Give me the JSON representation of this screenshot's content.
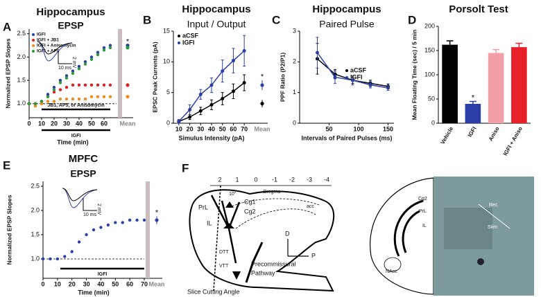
{
  "chart_data": [
    {
      "type": "scatter",
      "panel": "A",
      "title": "Hippocampus",
      "subtitle": "EPSP",
      "x_label": "Time (min)",
      "y_label": "Normalized EPSP Slopes",
      "xlim": [
        0,
        70
      ],
      "xticks": [
        0,
        10,
        20,
        30,
        40,
        50,
        60
      ],
      "ylim": [
        0.7,
        2.6
      ],
      "yticks": [
        {
          "value": 1,
          "label": "1.0"
        },
        1.5,
        {
          "value": 2,
          "label": "2.0"
        },
        2.5
      ],
      "mean_label": "Mean",
      "annotation": "*",
      "legend": "upper left",
      "scale_labels": [
        "2 mV",
        "10 ms"
      ],
      "x": [
        0,
        5,
        10,
        15,
        20,
        25,
        30,
        35,
        40,
        45,
        50,
        55,
        60,
        65
      ],
      "series": [
        {
          "name": "IGFI",
          "color": "#2b3ea8",
          "values": [
            1.0,
            1.0,
            1.05,
            1.2,
            1.35,
            1.5,
            1.6,
            1.7,
            1.8,
            1.9,
            2.0,
            2.1,
            2.2,
            2.25
          ],
          "mean": 2.25
        },
        {
          "name": "IGFI + JB1",
          "color": "#e02020",
          "values": [
            1.0,
            1.0,
            1.05,
            1.15,
            1.25,
            1.3,
            1.35,
            1.4,
            1.4,
            1.4,
            1.4,
            1.4,
            1.4,
            1.4
          ],
          "mean": 1.4
        },
        {
          "name": "IGFI + Anisomycin",
          "color": "#f08a1a",
          "values": [
            1.0,
            0.95,
            1.0,
            1.05,
            1.05,
            1.1,
            1.1,
            1.1,
            1.1,
            1.1,
            1.15,
            1.15,
            1.15,
            1.15
          ],
          "mean": 1.15
        },
        {
          "name": "IGFI + AP5",
          "color": "#2a9a3a",
          "values": [
            1.0,
            1.0,
            1.05,
            1.15,
            1.3,
            1.45,
            1.55,
            1.65,
            1.75,
            1.85,
            1.95,
            2.05,
            2.15,
            2.2
          ],
          "mean": 2.2
        }
      ],
      "bars": [
        {
          "label": "JB1, AP5, or Anisomycin",
          "span": [
            10,
            65
          ]
        },
        {
          "label": "IGFI",
          "span": [
            10,
            65
          ]
        }
      ]
    },
    {
      "type": "line",
      "panel": "B",
      "title": "Hippocampus",
      "subtitle": "Input / Output",
      "x_label": "Simulus Intensity (pA)",
      "y_label": "EPSC Peak Currents (pA)",
      "xlim": [
        5,
        75
      ],
      "xticks": [
        10,
        20,
        30,
        40,
        50,
        60,
        70
      ],
      "ylim": [
        0,
        15
      ],
      "yticks": [
        0,
        5,
        10,
        15
      ],
      "mean_label": "Mean",
      "annotation": "*",
      "legend": "upper left",
      "x": [
        10,
        20,
        30,
        40,
        50,
        60,
        70
      ],
      "series": [
        {
          "name": "aCSF",
          "color": "#000000",
          "values": [
            0.3,
            1.0,
            2.0,
            3.0,
            4.0,
            5.2,
            6.6
          ],
          "errors": [
            0.2,
            0.4,
            0.6,
            0.8,
            1.0,
            1.2,
            1.3
          ],
          "mean": 3.2,
          "mean_error": 0.6
        },
        {
          "name": "IGFI",
          "color": "#2b3ea8",
          "values": [
            0.3,
            2.2,
            4.7,
            6.2,
            8.5,
            10.2,
            11.8
          ],
          "errors": [
            0.3,
            0.8,
            0.8,
            1.2,
            1.8,
            2.0,
            2.5
          ],
          "mean": 6.2,
          "mean_error": 0.8
        }
      ]
    },
    {
      "type": "line",
      "panel": "C",
      "title": "Hippocampus",
      "subtitle": "Paired Pulse",
      "x_label": "Intervals of Paired Pulses (ms)",
      "y_label": "PPF Ratio (P2/P1)",
      "xlim": [
        0,
        160
      ],
      "xticks": [
        50,
        100,
        150
      ],
      "ylim": [
        0,
        3
      ],
      "yticks": [
        0,
        1,
        2,
        3
      ],
      "legend": "center right",
      "x": [
        30,
        60,
        90,
        120,
        150
      ],
      "series": [
        {
          "name": "aCSF",
          "color": "#000000",
          "values": [
            2.1,
            1.6,
            1.4,
            1.3,
            1.2
          ],
          "errors": [
            0.5,
            0.15,
            0.1,
            0.1,
            0.08
          ]
        },
        {
          "name": "IGFI",
          "color": "#2b3ea8",
          "values": [
            2.3,
            1.5,
            1.4,
            1.25,
            1.15
          ],
          "errors": [
            0.5,
            0.2,
            0.15,
            0.1,
            0.08
          ]
        }
      ]
    },
    {
      "type": "bar",
      "panel": "D",
      "title": "Porsolt Test",
      "y_label": "Mean Floating Time (sec) / 5 min",
      "ylim": [
        0,
        200
      ],
      "yticks": [
        0,
        50,
        100,
        150,
        200
      ],
      "annotation": "*",
      "categories": [
        "Vehicle",
        "IGFI",
        "Aniso",
        "IGFI + Aniso"
      ],
      "values": [
        162,
        40,
        145,
        157
      ],
      "errors": [
        8,
        5,
        7,
        8
      ],
      "colors": [
        "#000000",
        "#2b3ea8",
        "#f4a0a8",
        "#e8202a"
      ]
    },
    {
      "type": "scatter",
      "panel": "E",
      "title": "MPFC",
      "subtitle": "EPSP",
      "x_label": "Time (min)",
      "y_label": "Normalized EPSP Slopes",
      "xlim": [
        0,
        70
      ],
      "xticks": [
        0,
        10,
        20,
        30,
        40,
        50,
        60,
        70
      ],
      "ylim": [
        0.6,
        2.6
      ],
      "yticks": [
        {
          "value": 1,
          "label": "1.0"
        },
        1.5,
        {
          "value": 2,
          "label": "2.0"
        },
        2.5
      ],
      "mean_label": "Mean",
      "annotation": "*",
      "scale_labels": [
        "2 mV",
        "10 ms"
      ],
      "x": [
        0,
        5,
        10,
        15,
        20,
        25,
        30,
        35,
        40,
        45,
        50,
        55,
        60,
        65,
        70
      ],
      "series": [
        {
          "name": "IGFI",
          "color": "#2b3ea8",
          "values": [
            1.0,
            1.0,
            1.0,
            1.05,
            1.15,
            1.35,
            1.5,
            1.6,
            1.65,
            1.7,
            1.75,
            1.75,
            1.8,
            1.8,
            1.8
          ],
          "mean": 1.8,
          "mean_error": 0.08
        }
      ],
      "bars": [
        {
          "label": "IGFI",
          "span": [
            12,
            70
          ]
        }
      ]
    }
  ],
  "diagram": {
    "panel": "F",
    "bregma_label": "Bregma",
    "bregma_ticks": [
      "2",
      "1",
      "0",
      "-1",
      "-2",
      "-3",
      "-4"
    ],
    "angle": "10°",
    "labels": {
      "prl": "PrL",
      "cg1": "Cg1",
      "cg2": "Cg2",
      "il": "IL",
      "dtt": "DTT",
      "vtt": "VTT",
      "acc": "acc",
      "d": "D",
      "p": "P",
      "pathway": [
        "Precommissural",
        "Pathway"
      ],
      "cut": "Slice Cutting Angle"
    },
    "section": {
      "cg2": "Cg2",
      "prl": "PrL",
      "il": "IL",
      "nacc": "NAcc",
      "rec": "Rec",
      "stim": "Stim"
    }
  }
}
